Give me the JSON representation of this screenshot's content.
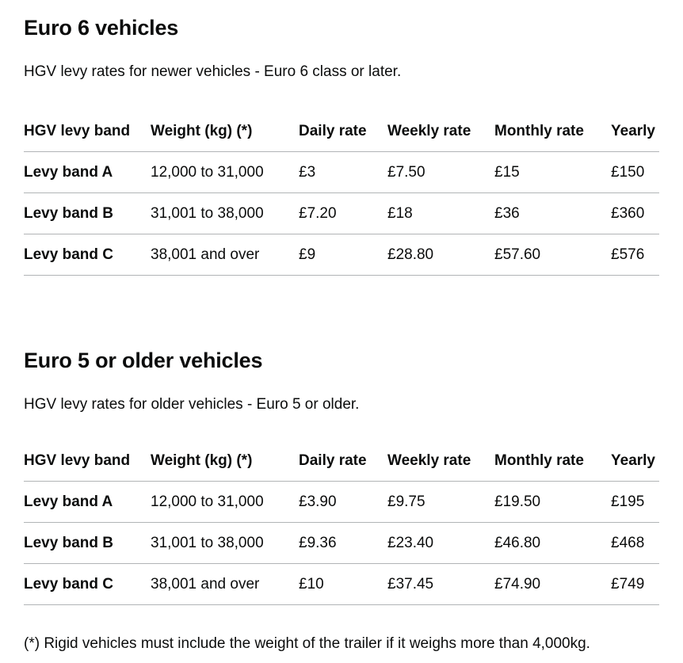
{
  "colors": {
    "text": "#0b0c0c",
    "border": "#b1b4b6",
    "background": "#ffffff"
  },
  "footnote": "(*) Rigid vehicles must include the weight of the trailer if it weighs more than 4,000kg.",
  "sections": [
    {
      "heading": "Euro 6 vehicles",
      "description": "HGV levy rates for newer vehicles - Euro 6 class or later.",
      "table": {
        "headers": [
          "HGV levy band",
          "Weight (kg) (*)",
          "Daily rate",
          "Weekly rate",
          "Monthly rate",
          "Yearly"
        ],
        "rows": [
          {
            "band": "Levy band A",
            "weight": "12,000 to 31,000",
            "daily": "£3",
            "weekly": "£7.50",
            "monthly": "£15",
            "yearly": "£150"
          },
          {
            "band": "Levy band B",
            "weight": "31,001 to 38,000",
            "daily": "£7.20",
            "weekly": "£18",
            "monthly": "£36",
            "yearly": "£360"
          },
          {
            "band": "Levy band C",
            "weight": "38,001 and over",
            "daily": "£9",
            "weekly": "£28.80",
            "monthly": "£57.60",
            "yearly": "£576"
          }
        ]
      }
    },
    {
      "heading": "Euro 5 or older vehicles",
      "description": "HGV levy rates for older vehicles - Euro 5 or older.",
      "table": {
        "headers": [
          "HGV levy band",
          "Weight (kg) (*)",
          "Daily rate",
          "Weekly rate",
          "Monthly rate",
          "Yearly"
        ],
        "rows": [
          {
            "band": "Levy band A",
            "weight": "12,000 to 31,000",
            "daily": "£3.90",
            "weekly": "£9.75",
            "monthly": "£19.50",
            "yearly": "£195"
          },
          {
            "band": "Levy band B",
            "weight": "31,001 to 38,000",
            "daily": "£9.36",
            "weekly": "£23.40",
            "monthly": "£46.80",
            "yearly": "£468"
          },
          {
            "band": "Levy band C",
            "weight": "38,001 and over",
            "daily": "£10",
            "weekly": "£37.45",
            "monthly": "£74.90",
            "yearly": "£749"
          }
        ]
      }
    }
  ]
}
